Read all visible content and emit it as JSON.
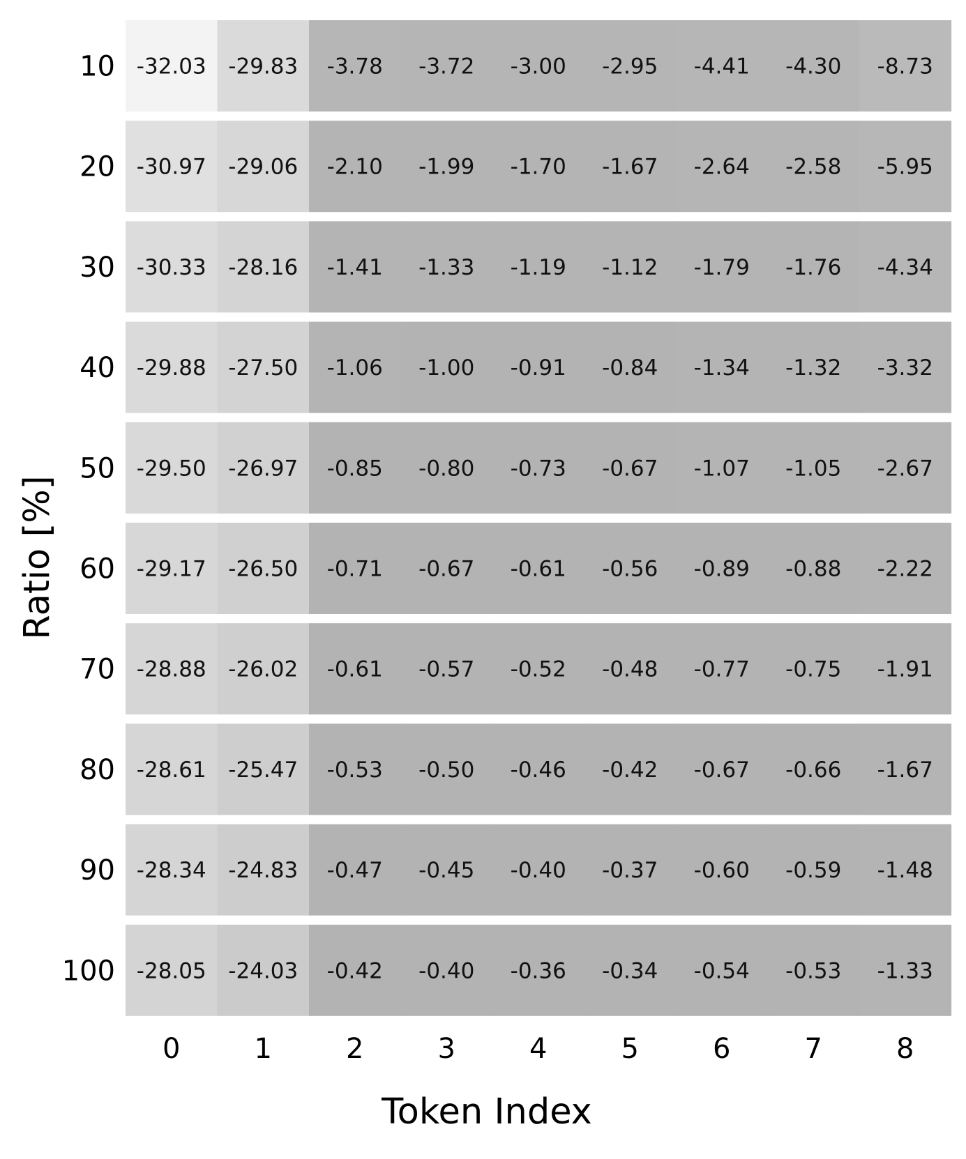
{
  "chart_data": {
    "type": "heatmap",
    "xlabel": "Token Index",
    "ylabel": "Ratio [%]",
    "x_categories": [
      "0",
      "1",
      "2",
      "3",
      "4",
      "5",
      "6",
      "7",
      "8"
    ],
    "y_categories": [
      "10",
      "20",
      "30",
      "40",
      "50",
      "60",
      "70",
      "80",
      "90",
      "100"
    ],
    "values": [
      [
        "-32.03",
        "-29.83",
        "-3.78",
        "-3.72",
        "-3.00",
        "-2.95",
        "-4.41",
        "-4.30",
        "-8.73"
      ],
      [
        "-30.97",
        "-29.06",
        "-2.10",
        "-1.99",
        "-1.70",
        "-1.67",
        "-2.64",
        "-2.58",
        "-5.95"
      ],
      [
        "-30.33",
        "-28.16",
        "-1.41",
        "-1.33",
        "-1.19",
        "-1.12",
        "-1.79",
        "-1.76",
        "-4.34"
      ],
      [
        "-29.88",
        "-27.50",
        "-1.06",
        "-1.00",
        "-0.91",
        "-0.84",
        "-1.34",
        "-1.32",
        "-3.32"
      ],
      [
        "-29.50",
        "-26.97",
        "-0.85",
        "-0.80",
        "-0.73",
        "-0.67",
        "-1.07",
        "-1.05",
        "-2.67"
      ],
      [
        "-29.17",
        "-26.50",
        "-0.71",
        "-0.67",
        "-0.61",
        "-0.56",
        "-0.89",
        "-0.88",
        "-2.22"
      ],
      [
        "-28.88",
        "-26.02",
        "-0.61",
        "-0.57",
        "-0.52",
        "-0.48",
        "-0.77",
        "-0.75",
        "-1.91"
      ],
      [
        "-28.61",
        "-25.47",
        "-0.53",
        "-0.50",
        "-0.46",
        "-0.42",
        "-0.67",
        "-0.66",
        "-1.67"
      ],
      [
        "-28.34",
        "-24.83",
        "-0.47",
        "-0.45",
        "-0.40",
        "-0.37",
        "-0.60",
        "-0.59",
        "-1.48"
      ],
      [
        "-28.05",
        "-24.03",
        "-0.42",
        "-0.40",
        "-0.36",
        "-0.34",
        "-0.54",
        "-0.53",
        "-1.33"
      ]
    ],
    "colormap": {
      "low_color": "#f3f3f3",
      "high_color": "#b3b3b3"
    },
    "grid": false,
    "row_separators": true
  }
}
